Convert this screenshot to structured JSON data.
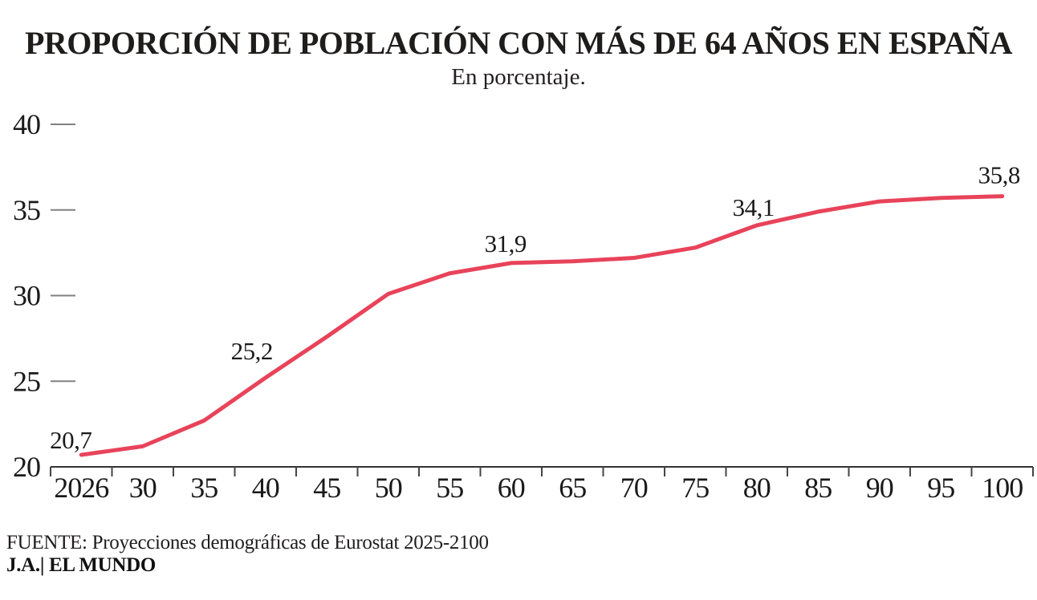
{
  "header": {
    "title": "PROPORCIÓN DE POBLACIÓN CON MÁS DE 64 AÑOS EN ESPAÑA",
    "subtitle": "En porcentaje."
  },
  "footer": {
    "source": "FUENTE: Proyecciones demográficas de Eurostat 2025-2100",
    "credit": "J.A.| EL MUNDO"
  },
  "colors": {
    "line": "#e8435a",
    "text": "#1a1a1a",
    "axis": "#333333",
    "y_tick_dash": "#808080",
    "x_tick": "#444444"
  },
  "chart_data": {
    "type": "line",
    "title": "PROPORCIÓN DE POBLACIÓN CON MÁS DE 64 AÑOS EN ESPAÑA",
    "subtitle": "En porcentaje.",
    "xlabel": "",
    "ylabel": "",
    "categories": [
      "2026",
      "30",
      "35",
      "40",
      "45",
      "50",
      "55",
      "60",
      "65",
      "70",
      "75",
      "80",
      "85",
      "90",
      "95",
      "100"
    ],
    "values": [
      20.7,
      21.2,
      22.7,
      25.2,
      27.6,
      30.1,
      31.3,
      31.9,
      32.0,
      32.2,
      32.8,
      34.1,
      34.9,
      35.5,
      35.7,
      35.8
    ],
    "point_labels": [
      {
        "index": 0,
        "text": "20,7"
      },
      {
        "index": 3,
        "text": "25,2"
      },
      {
        "index": 7,
        "text": "31,9"
      },
      {
        "index": 11,
        "text": "34,1"
      },
      {
        "index": 15,
        "text": "35,8"
      }
    ],
    "y_ticks": [
      20,
      25,
      30,
      35,
      40
    ],
    "ylim": [
      20,
      40
    ],
    "grid": false,
    "legend": false
  }
}
